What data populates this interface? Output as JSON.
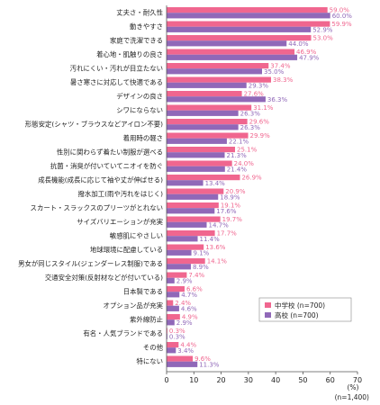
{
  "chart_data": {
    "type": "bar",
    "orientation": "horizontal",
    "title": "",
    "xlabel": "",
    "ylabel": "",
    "unit": "(%)",
    "sample_note": "(n=1,400)",
    "xlim": [
      0,
      70
    ],
    "xticks": [
      0,
      10,
      20,
      30,
      40,
      50,
      60,
      70
    ],
    "grid": false,
    "legend_position": "bottom-right",
    "categories": [
      "丈夫さ・耐久性",
      "動きやすさ",
      "家庭で洗濯できる",
      "着心地・肌触りの良さ",
      "汚れにくい・汚れが目立たない",
      "暑さ寒さに対応して快適である",
      "デザインの良さ",
      "シワにならない",
      "形態安定(シャツ・ブラウスなどアイロン不要)",
      "着用時の軽さ",
      "性別に関わらず着たい制服が選べる",
      "抗菌・消臭が付いていてニオイを防ぐ",
      "成長機能(成長に応じて袖や丈が伸ばせる)",
      "撥水加工(雨や汚れをはじく)",
      "スカート・スラックスのプリーツがとれない",
      "サイズバリエーションが充実",
      "敏感肌にやさしい",
      "地球環境に配慮している",
      "男女が同じスタイル(ジェンダーレス制服)である",
      "交通安全対策(反射材などが付いている)",
      "日本製である",
      "オプション品が充実",
      "紫外線防止",
      "有名・人気ブランドである",
      "その他",
      "特にない"
    ],
    "series": [
      {
        "name": "中学校 (n=700)",
        "color": "#f0668f",
        "values": [
          59.0,
          59.9,
          53.0,
          46.9,
          37.4,
          38.3,
          27.6,
          31.1,
          29.6,
          29.9,
          25.1,
          24.0,
          26.9,
          20.9,
          19.1,
          19.7,
          17.7,
          13.6,
          14.1,
          7.4,
          6.6,
          2.4,
          4.9,
          0.3,
          4.4,
          9.6
        ]
      },
      {
        "name": "高校 (n=700)",
        "color": "#9068b8",
        "values": [
          60.0,
          52.9,
          44.0,
          47.9,
          35.0,
          29.3,
          36.3,
          26.3,
          26.3,
          22.1,
          21.3,
          21.4,
          13.4,
          18.9,
          17.6,
          14.7,
          11.4,
          9.1,
          8.9,
          2.9,
          4.7,
          4.6,
          2.9,
          0.3,
          3.4,
          11.3
        ]
      }
    ]
  },
  "colors": {
    "series_1": "#f0668f",
    "series_2": "#9068b8",
    "axis": "#555555"
  }
}
